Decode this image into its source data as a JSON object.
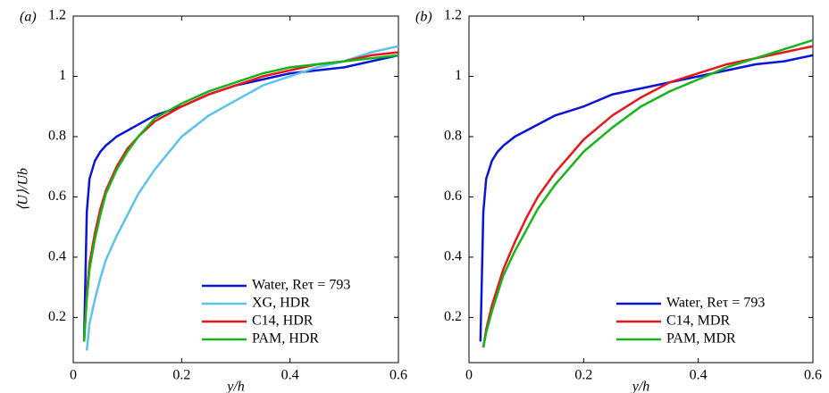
{
  "chart_data": [
    {
      "type": "line",
      "panel_label": "(a)",
      "xlabel": "y/h",
      "ylabel": "⟨U⟩/Ub",
      "xlim": [
        0,
        0.6
      ],
      "xticks": [
        0,
        0.2,
        0.4,
        0.6
      ],
      "ylim": [
        0.05,
        1.2
      ],
      "yticks": [
        0.2,
        0.4,
        0.6,
        0.8,
        1.0,
        1.2
      ],
      "legend": "lower right",
      "x": [
        0.02,
        0.025,
        0.03,
        0.04,
        0.05,
        0.06,
        0.08,
        0.1,
        0.12,
        0.15,
        0.2,
        0.25,
        0.3,
        0.35,
        0.4,
        0.45,
        0.5,
        0.55,
        0.6
      ],
      "series": [
        {
          "name": "Water, Reτ = 793",
          "color": "#0a14d6",
          "values": [
            0.12,
            0.55,
            0.66,
            0.72,
            0.75,
            0.77,
            0.8,
            0.82,
            0.84,
            0.87,
            0.9,
            0.94,
            0.97,
            0.99,
            1.01,
            1.02,
            1.03,
            1.05,
            1.07
          ]
        },
        {
          "name": "XG, HDR",
          "color": "#5bc2ec",
          "values": [
            null,
            0.09,
            0.18,
            0.26,
            0.33,
            0.39,
            0.47,
            0.54,
            0.61,
            0.69,
            0.8,
            0.87,
            0.92,
            0.97,
            1.0,
            1.03,
            1.05,
            1.08,
            1.1
          ]
        },
        {
          "name": "C14, HDR",
          "color": "#e8171b",
          "values": [
            0.12,
            0.28,
            0.38,
            0.48,
            0.56,
            0.62,
            0.7,
            0.76,
            0.8,
            0.85,
            0.9,
            0.94,
            0.97,
            1.0,
            1.02,
            1.04,
            1.05,
            1.07,
            1.08
          ]
        },
        {
          "name": "PAM, HDR",
          "color": "#17b41b",
          "values": [
            0.12,
            0.26,
            0.36,
            0.46,
            0.54,
            0.61,
            0.69,
            0.75,
            0.8,
            0.86,
            0.91,
            0.95,
            0.98,
            1.01,
            1.03,
            1.04,
            1.05,
            1.06,
            1.07
          ]
        }
      ]
    },
    {
      "type": "line",
      "panel_label": "(b)",
      "xlabel": "y/h",
      "xlim": [
        0,
        0.6
      ],
      "xticks": [
        0,
        0.2,
        0.4,
        0.6
      ],
      "ylim": [
        0.05,
        1.2
      ],
      "yticks": [
        0.2,
        0.4,
        0.6,
        0.8,
        1.0,
        1.2
      ],
      "legend": "lower right",
      "x": [
        0.02,
        0.025,
        0.03,
        0.04,
        0.05,
        0.06,
        0.08,
        0.1,
        0.12,
        0.15,
        0.2,
        0.25,
        0.3,
        0.35,
        0.4,
        0.45,
        0.5,
        0.55,
        0.6
      ],
      "series": [
        {
          "name": "Water, Reτ = 793",
          "color": "#0a14d6",
          "values": [
            0.12,
            0.55,
            0.66,
            0.72,
            0.75,
            0.77,
            0.8,
            0.82,
            0.84,
            0.87,
            0.9,
            0.94,
            0.96,
            0.98,
            1.0,
            1.02,
            1.04,
            1.05,
            1.07
          ]
        },
        {
          "name": "C14, MDR",
          "color": "#e8171b",
          "values": [
            null,
            0.1,
            0.16,
            0.24,
            0.3,
            0.36,
            0.45,
            0.53,
            0.6,
            0.68,
            0.79,
            0.87,
            0.93,
            0.98,
            1.01,
            1.04,
            1.06,
            1.08,
            1.1
          ]
        },
        {
          "name": "PAM, MDR",
          "color": "#17b41b",
          "values": [
            null,
            0.1,
            0.15,
            0.22,
            0.28,
            0.34,
            0.42,
            0.49,
            0.56,
            0.64,
            0.75,
            0.83,
            0.9,
            0.95,
            0.99,
            1.03,
            1.06,
            1.09,
            1.12
          ]
        }
      ]
    }
  ]
}
